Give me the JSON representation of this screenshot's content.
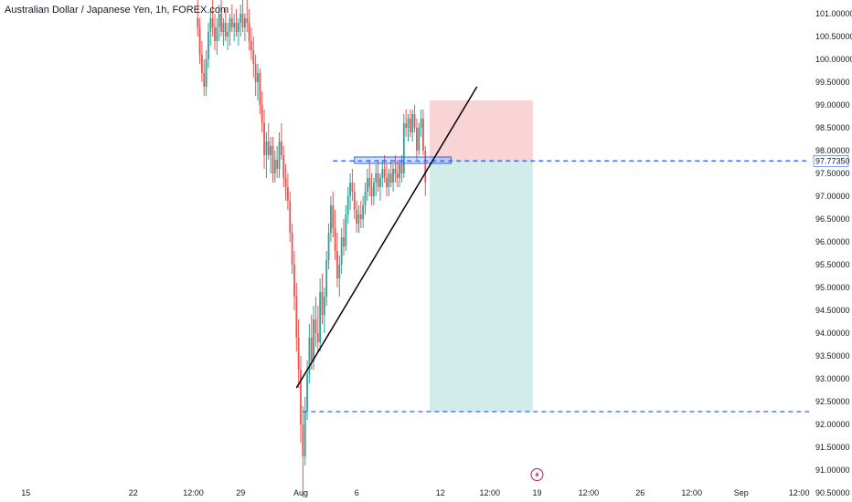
{
  "title": "Australian Dollar / Japanese Yen, 1h, FOREX.com",
  "colors": {
    "up": "#26a69a",
    "down": "#ef5350",
    "trendline": "#000000",
    "hline": "#2962ff",
    "stop_zone": "#f7c5c8",
    "target_zone": "#b2dfdb",
    "entry_box": "#2962ff",
    "marker": "#c2185b"
  },
  "chart_data": {
    "type": "candlestick",
    "symbol": "Australian Dollar / Japanese Yen",
    "interval": "1h",
    "source": "FOREX.com",
    "ylim": [
      90.3,
      101.3
    ],
    "y_ticks": [
      "101.00000",
      "100.50000",
      "100.00000",
      "99.50000",
      "99.00000",
      "98.50000",
      "98.00000",
      "97.50000",
      "97.00000",
      "96.50000",
      "96.00000",
      "95.50000",
      "95.00000",
      "94.50000",
      "94.00000",
      "93.50000",
      "93.00000",
      "92.50000",
      "92.00000",
      "91.50000",
      "91.00000",
      "90.50000"
    ],
    "highlighted_price": "97.77350",
    "x_ticks": [
      "12:00",
      "15",
      "22",
      "12:00",
      "29",
      "Aug",
      "6",
      "12",
      "12:00",
      "19",
      "12:00",
      "26",
      "12:00",
      "Sep",
      "12:00"
    ],
    "x_tick_index": [
      -7,
      12,
      62,
      90,
      112,
      140,
      166,
      205,
      228,
      250,
      274,
      298,
      322,
      345,
      372
    ],
    "candles": [
      {
        "i": 92,
        "o": 100.9,
        "h": 101.3,
        "l": 100.5,
        "c": 100.7
      },
      {
        "i": 93,
        "o": 100.7,
        "h": 100.9,
        "l": 99.9,
        "c": 100.1
      },
      {
        "i": 94,
        "o": 100.1,
        "h": 100.4,
        "l": 99.5,
        "c": 99.7
      },
      {
        "i": 95,
        "o": 99.7,
        "h": 100.0,
        "l": 99.2,
        "c": 99.4
      },
      {
        "i": 96,
        "o": 99.4,
        "h": 100.2,
        "l": 99.2,
        "c": 100.0
      },
      {
        "i": 97,
        "o": 100.0,
        "h": 100.8,
        "l": 99.8,
        "c": 100.6
      },
      {
        "i": 98,
        "o": 100.6,
        "h": 101.1,
        "l": 100.3,
        "c": 100.9
      },
      {
        "i": 99,
        "o": 100.9,
        "h": 101.3,
        "l": 100.5,
        "c": 100.7
      },
      {
        "i": 100,
        "o": 100.7,
        "h": 101.0,
        "l": 100.2,
        "c": 100.4
      },
      {
        "i": 101,
        "o": 100.4,
        "h": 100.9,
        "l": 100.1,
        "c": 100.7
      },
      {
        "i": 102,
        "o": 100.7,
        "h": 101.2,
        "l": 100.4,
        "c": 101.0
      },
      {
        "i": 103,
        "o": 101.0,
        "h": 101.3,
        "l": 100.5,
        "c": 100.6
      },
      {
        "i": 104,
        "o": 100.6,
        "h": 100.9,
        "l": 100.3,
        "c": 100.8
      },
      {
        "i": 105,
        "o": 100.8,
        "h": 101.1,
        "l": 100.4,
        "c": 100.5
      },
      {
        "i": 106,
        "o": 100.5,
        "h": 100.8,
        "l": 100.2,
        "c": 100.6
      },
      {
        "i": 107,
        "o": 100.6,
        "h": 101.0,
        "l": 100.3,
        "c": 100.9
      },
      {
        "i": 108,
        "o": 100.9,
        "h": 101.2,
        "l": 100.6,
        "c": 100.7
      },
      {
        "i": 109,
        "o": 100.7,
        "h": 101.0,
        "l": 100.4,
        "c": 100.8
      },
      {
        "i": 110,
        "o": 100.8,
        "h": 101.1,
        "l": 100.5,
        "c": 100.6
      },
      {
        "i": 111,
        "o": 100.6,
        "h": 100.9,
        "l": 100.3,
        "c": 100.8
      },
      {
        "i": 112,
        "o": 100.8,
        "h": 101.2,
        "l": 100.5,
        "c": 101.0
      },
      {
        "i": 113,
        "o": 101.0,
        "h": 101.3,
        "l": 100.6,
        "c": 100.7
      },
      {
        "i": 114,
        "o": 100.7,
        "h": 101.0,
        "l": 100.4,
        "c": 100.9
      },
      {
        "i": 115,
        "o": 100.9,
        "h": 101.3,
        "l": 100.6,
        "c": 100.8
      },
      {
        "i": 116,
        "o": 100.8,
        "h": 101.1,
        "l": 100.2,
        "c": 100.4
      },
      {
        "i": 117,
        "o": 100.4,
        "h": 100.7,
        "l": 100.0,
        "c": 100.2
      },
      {
        "i": 118,
        "o": 100.2,
        "h": 100.5,
        "l": 99.6,
        "c": 99.9
      },
      {
        "i": 119,
        "o": 99.9,
        "h": 100.1,
        "l": 99.2,
        "c": 99.5
      },
      {
        "i": 120,
        "o": 99.5,
        "h": 99.9,
        "l": 99.1,
        "c": 99.7
      },
      {
        "i": 121,
        "o": 99.7,
        "h": 99.8,
        "l": 98.8,
        "c": 99.0
      },
      {
        "i": 122,
        "o": 99.0,
        "h": 99.3,
        "l": 98.4,
        "c": 98.6
      },
      {
        "i": 123,
        "o": 98.6,
        "h": 98.9,
        "l": 97.6,
        "c": 97.9
      },
      {
        "i": 124,
        "o": 97.9,
        "h": 98.4,
        "l": 97.4,
        "c": 98.2
      },
      {
        "i": 125,
        "o": 98.2,
        "h": 98.6,
        "l": 97.8,
        "c": 97.9
      },
      {
        "i": 126,
        "o": 97.9,
        "h": 98.3,
        "l": 97.5,
        "c": 98.1
      },
      {
        "i": 127,
        "o": 98.1,
        "h": 98.3,
        "l": 97.3,
        "c": 97.5
      },
      {
        "i": 128,
        "o": 97.5,
        "h": 98.0,
        "l": 97.3,
        "c": 97.8
      },
      {
        "i": 129,
        "o": 97.8,
        "h": 98.1,
        "l": 97.4,
        "c": 97.6
      },
      {
        "i": 130,
        "o": 97.6,
        "h": 98.4,
        "l": 97.4,
        "c": 98.2
      },
      {
        "i": 131,
        "o": 98.2,
        "h": 98.6,
        "l": 97.8,
        "c": 97.9
      },
      {
        "i": 132,
        "o": 97.9,
        "h": 98.1,
        "l": 97.2,
        "c": 97.4
      },
      {
        "i": 133,
        "o": 97.4,
        "h": 97.7,
        "l": 96.9,
        "c": 97.2
      },
      {
        "i": 134,
        "o": 97.2,
        "h": 97.5,
        "l": 96.7,
        "c": 96.9
      },
      {
        "i": 135,
        "o": 96.9,
        "h": 97.1,
        "l": 96.0,
        "c": 96.2
      },
      {
        "i": 136,
        "o": 96.2,
        "h": 96.4,
        "l": 95.3,
        "c": 95.5
      },
      {
        "i": 137,
        "o": 95.5,
        "h": 95.8,
        "l": 94.5,
        "c": 94.8
      },
      {
        "i": 138,
        "o": 94.8,
        "h": 95.1,
        "l": 93.6,
        "c": 93.9
      },
      {
        "i": 139,
        "o": 93.9,
        "h": 94.3,
        "l": 92.8,
        "c": 93.2
      },
      {
        "i": 140,
        "o": 93.2,
        "h": 93.5,
        "l": 91.6,
        "c": 92.0
      },
      {
        "i": 141,
        "o": 92.0,
        "h": 92.4,
        "l": 90.4,
        "c": 91.3
      },
      {
        "i": 142,
        "o": 91.3,
        "h": 92.6,
        "l": 91.1,
        "c": 92.3
      },
      {
        "i": 143,
        "o": 92.3,
        "h": 93.4,
        "l": 92.1,
        "c": 93.1
      },
      {
        "i": 144,
        "o": 93.1,
        "h": 94.2,
        "l": 92.9,
        "c": 93.9
      },
      {
        "i": 145,
        "o": 93.9,
        "h": 94.4,
        "l": 93.2,
        "c": 93.4
      },
      {
        "i": 146,
        "o": 93.4,
        "h": 94.6,
        "l": 93.2,
        "c": 94.3
      },
      {
        "i": 147,
        "o": 94.3,
        "h": 94.8,
        "l": 93.7,
        "c": 94.0
      },
      {
        "i": 148,
        "o": 94.0,
        "h": 94.6,
        "l": 93.6,
        "c": 93.8
      },
      {
        "i": 149,
        "o": 93.8,
        "h": 95.2,
        "l": 93.6,
        "c": 94.9
      },
      {
        "i": 150,
        "o": 94.9,
        "h": 95.3,
        "l": 94.2,
        "c": 94.4
      },
      {
        "i": 151,
        "o": 94.4,
        "h": 95.0,
        "l": 94.0,
        "c": 94.8
      },
      {
        "i": 152,
        "o": 94.8,
        "h": 95.8,
        "l": 94.6,
        "c": 95.6
      },
      {
        "i": 153,
        "o": 95.6,
        "h": 96.4,
        "l": 95.4,
        "c": 96.2
      },
      {
        "i": 154,
        "o": 96.2,
        "h": 97.0,
        "l": 96.0,
        "c": 96.8
      },
      {
        "i": 155,
        "o": 96.8,
        "h": 97.1,
        "l": 96.1,
        "c": 96.3
      },
      {
        "i": 156,
        "o": 96.3,
        "h": 96.7,
        "l": 95.6,
        "c": 95.8
      },
      {
        "i": 157,
        "o": 95.8,
        "h": 96.2,
        "l": 95.0,
        "c": 95.2
      },
      {
        "i": 158,
        "o": 95.2,
        "h": 95.7,
        "l": 94.8,
        "c": 95.5
      },
      {
        "i": 159,
        "o": 95.5,
        "h": 96.3,
        "l": 95.3,
        "c": 96.1
      },
      {
        "i": 160,
        "o": 96.1,
        "h": 96.5,
        "l": 95.7,
        "c": 95.9
      },
      {
        "i": 161,
        "o": 95.9,
        "h": 96.8,
        "l": 95.8,
        "c": 96.6
      },
      {
        "i": 162,
        "o": 96.6,
        "h": 97.2,
        "l": 96.4,
        "c": 97.0
      },
      {
        "i": 163,
        "o": 97.0,
        "h": 97.5,
        "l": 96.7,
        "c": 97.3
      },
      {
        "i": 164,
        "o": 97.3,
        "h": 97.6,
        "l": 96.9,
        "c": 97.1
      },
      {
        "i": 165,
        "o": 97.1,
        "h": 97.3,
        "l": 96.5,
        "c": 96.7
      },
      {
        "i": 166,
        "o": 96.7,
        "h": 96.9,
        "l": 96.2,
        "c": 96.4
      },
      {
        "i": 167,
        "o": 96.4,
        "h": 96.8,
        "l": 96.2,
        "c": 96.6
      },
      {
        "i": 168,
        "o": 96.6,
        "h": 96.9,
        "l": 96.3,
        "c": 96.5
      },
      {
        "i": 169,
        "o": 96.5,
        "h": 97.0,
        "l": 96.3,
        "c": 96.8
      },
      {
        "i": 170,
        "o": 96.8,
        "h": 97.3,
        "l": 96.6,
        "c": 97.1
      },
      {
        "i": 171,
        "o": 97.1,
        "h": 97.6,
        "l": 96.9,
        "c": 97.4
      },
      {
        "i": 172,
        "o": 97.4,
        "h": 97.8,
        "l": 97.0,
        "c": 97.2
      },
      {
        "i": 173,
        "o": 97.2,
        "h": 97.5,
        "l": 96.8,
        "c": 97.0
      },
      {
        "i": 174,
        "o": 97.0,
        "h": 97.4,
        "l": 96.8,
        "c": 97.3
      },
      {
        "i": 175,
        "o": 97.3,
        "h": 97.7,
        "l": 97.0,
        "c": 97.5
      },
      {
        "i": 176,
        "o": 97.5,
        "h": 97.8,
        "l": 97.1,
        "c": 97.2
      },
      {
        "i": 177,
        "o": 97.2,
        "h": 97.5,
        "l": 96.9,
        "c": 97.4
      },
      {
        "i": 178,
        "o": 97.4,
        "h": 97.8,
        "l": 97.2,
        "c": 97.6
      },
      {
        "i": 179,
        "o": 97.6,
        "h": 97.9,
        "l": 97.3,
        "c": 97.4
      },
      {
        "i": 180,
        "o": 97.4,
        "h": 97.7,
        "l": 97.0,
        "c": 97.2
      },
      {
        "i": 181,
        "o": 97.2,
        "h": 97.6,
        "l": 97.0,
        "c": 97.5
      },
      {
        "i": 182,
        "o": 97.5,
        "h": 97.8,
        "l": 97.2,
        "c": 97.3
      },
      {
        "i": 183,
        "o": 97.3,
        "h": 97.7,
        "l": 97.1,
        "c": 97.6
      },
      {
        "i": 184,
        "o": 97.6,
        "h": 97.9,
        "l": 97.3,
        "c": 97.5
      },
      {
        "i": 185,
        "o": 97.5,
        "h": 97.8,
        "l": 97.2,
        "c": 97.4
      },
      {
        "i": 186,
        "o": 97.4,
        "h": 97.8,
        "l": 97.2,
        "c": 97.7
      },
      {
        "i": 187,
        "o": 97.7,
        "h": 97.9,
        "l": 97.3,
        "c": 97.5
      },
      {
        "i": 188,
        "o": 97.5,
        "h": 98.8,
        "l": 97.4,
        "c": 98.6
      },
      {
        "i": 189,
        "o": 98.6,
        "h": 98.9,
        "l": 98.3,
        "c": 98.5
      },
      {
        "i": 190,
        "o": 98.5,
        "h": 98.8,
        "l": 98.2,
        "c": 98.7
      },
      {
        "i": 191,
        "o": 98.7,
        "h": 98.9,
        "l": 98.3,
        "c": 98.4
      },
      {
        "i": 192,
        "o": 98.4,
        "h": 98.9,
        "l": 98.2,
        "c": 98.8
      },
      {
        "i": 193,
        "o": 98.8,
        "h": 99.0,
        "l": 98.4,
        "c": 98.5
      },
      {
        "i": 194,
        "o": 98.5,
        "h": 98.7,
        "l": 97.8,
        "c": 98.0
      },
      {
        "i": 195,
        "o": 98.0,
        "h": 98.6,
        "l": 97.9,
        "c": 98.5
      },
      {
        "i": 196,
        "o": 98.5,
        "h": 98.9,
        "l": 98.3,
        "c": 98.7
      },
      {
        "i": 197,
        "o": 98.7,
        "h": 98.9,
        "l": 97.9,
        "c": 98.0
      },
      {
        "i": 198,
        "o": 98.0,
        "h": 98.1,
        "l": 97.0,
        "c": 97.3
      }
    ],
    "trendline": {
      "from": {
        "i": 138,
        "price": 92.8
      },
      "to": {
        "i": 222,
        "price": 99.4
      }
    },
    "entry_line": {
      "price": 97.7735,
      "from_i": 155,
      "to_i": 999
    },
    "target_line": {
      "price": 92.28,
      "from_i": 141,
      "to_i": 999
    },
    "stop_zone": {
      "from_i": 200,
      "to_i": 248,
      "top": 99.1,
      "bottom": 97.78
    },
    "target_zone": {
      "from_i": 200,
      "to_i": 248,
      "top": 97.78,
      "bottom": 92.28
    },
    "entry_box": {
      "from_i": 165,
      "to_i": 210,
      "top": 97.86,
      "bottom": 97.72
    }
  }
}
